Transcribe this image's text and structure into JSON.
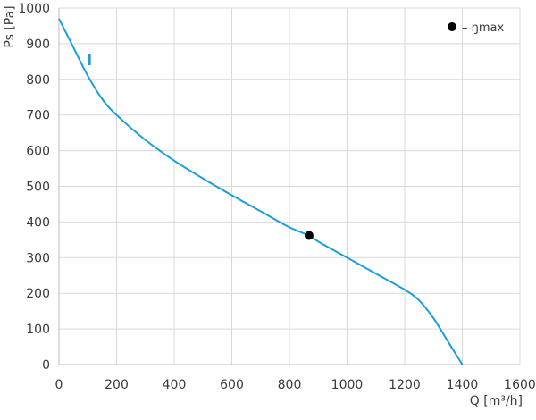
{
  "chart_data": {
    "type": "line",
    "xlabel": "Q [m³/h]",
    "ylabel": "Ps [Pa]",
    "xlim": [
      0,
      1600
    ],
    "ylim": [
      0,
      1000
    ],
    "xticks": [
      0,
      200,
      400,
      600,
      800,
      1000,
      1200,
      1400,
      1600
    ],
    "yticks": [
      0,
      100,
      200,
      300,
      400,
      500,
      600,
      700,
      800,
      900,
      1000
    ],
    "grid": true,
    "legend_position": "top-right",
    "legend": [
      {
        "marker": "black-dot",
        "label": "– ŋmax"
      }
    ],
    "series": [
      {
        "name": "I",
        "color": "#1a9fd9",
        "x": [
          0,
          50,
          100,
          150,
          200,
          300,
          400,
          500,
          600,
          700,
          800,
          868,
          900,
          1000,
          1100,
          1200,
          1250,
          1300,
          1350,
          1400
        ],
        "y": [
          970,
          890,
          810,
          745,
          700,
          630,
          572,
          522,
          475,
          430,
          385,
          362,
          345,
          300,
          255,
          210,
          180,
          130,
          65,
          0
        ]
      }
    ],
    "points": [
      {
        "label": "ŋmax",
        "x": 868,
        "y": 362,
        "color": "#000000"
      }
    ]
  }
}
